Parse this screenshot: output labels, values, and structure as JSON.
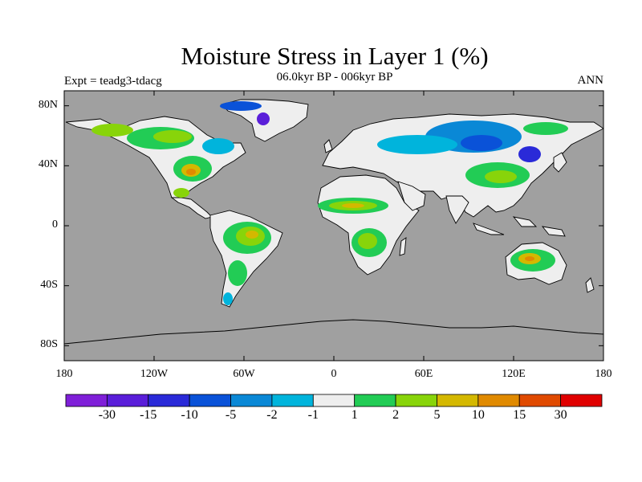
{
  "title": "Moisture Stress in Layer 1 (%)",
  "subtitle": "06.0kyr BP - 006kyr BP",
  "left_label": "Expt = teadg3-tdacg",
  "right_label": "ANN",
  "colors": {
    "ocean": "#a0a0a0",
    "land_neutral": "#eeeeee",
    "coast": "#000000"
  },
  "chart_data": {
    "type": "heatmap",
    "x_ticks": [
      {
        "value": -180,
        "label": "180"
      },
      {
        "value": -120,
        "label": "120W"
      },
      {
        "value": -60,
        "label": "60W"
      },
      {
        "value": 0,
        "label": "0"
      },
      {
        "value": 60,
        "label": "60E"
      },
      {
        "value": 120,
        "label": "120E"
      },
      {
        "value": 180,
        "label": "180"
      }
    ],
    "y_ticks": [
      {
        "value": 80,
        "label": "80N"
      },
      {
        "value": 40,
        "label": "40N"
      },
      {
        "value": 0,
        "label": "0"
      },
      {
        "value": -40,
        "label": "40S"
      },
      {
        "value": -80,
        "label": "80S"
      }
    ],
    "xlim": [
      -180,
      180
    ],
    "ylim": [
      -90,
      90
    ],
    "colorbar": {
      "colors": [
        "#7f1fd8",
        "#5a1ed9",
        "#2a2ad8",
        "#0a52d8",
        "#0a88d6",
        "#00b4dc",
        "#eeeeee",
        "#22cc55",
        "#88d40a",
        "#d4b800",
        "#e08a00",
        "#e04a00",
        "#e00000"
      ],
      "labels": [
        "-30",
        "-15",
        "-10",
        "-5",
        "-2",
        "-1",
        "1",
        "2",
        "5",
        "10",
        "15",
        "30"
      ]
    }
  }
}
